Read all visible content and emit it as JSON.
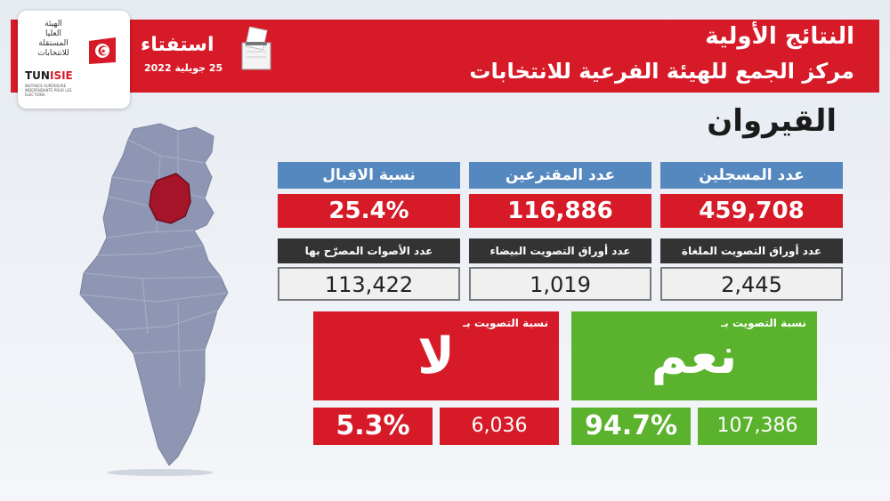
{
  "header": {
    "title_main": "النتائج الأولية",
    "title_sub": "مركز الجمع للهيئة الفرعية للانتخابات",
    "referendum_word": "استفتاء",
    "referendum_date": "25 جويلية 2022",
    "accent_color": "#d71a28"
  },
  "logo": {
    "arabic_lines": [
      "الهيئة",
      "العليا",
      "المستقلة",
      "للانتخابات"
    ],
    "latin_prefix": "TUN",
    "latin_suffix": "ISIE",
    "small_text": "INSTANCE SUPERIEURE INDEPENDANTE POUR LES ELECTIONS"
  },
  "region": {
    "name": "القيروان",
    "highlight_color": "#a6142a"
  },
  "stats": {
    "registered": {
      "label": "عدد المسجلين",
      "value": "459,708"
    },
    "voters": {
      "label": "عدد المقترعين",
      "value": "116,886"
    },
    "turnout": {
      "label": "نسبة الاقبال",
      "value": "25.4%"
    },
    "cancelled": {
      "label": "عدد أوراق التصويت الملغاة",
      "value": "2,445"
    },
    "blank": {
      "label": "عدد أوراق التصويت البيضاء",
      "value": "1,019"
    },
    "valid": {
      "label": "عدد الأصوات المصرّح بها",
      "value": "113,422"
    }
  },
  "no_vote": {
    "label": "نسبة التصويت بـ",
    "word": "لا",
    "percent": "5.3%",
    "count": "6,036",
    "color": "#d71a28"
  },
  "yes_vote": {
    "label": "نسبة التصويت بـ",
    "word": "نعم",
    "percent": "94.7%",
    "count": "107,386",
    "color": "#5ab22d"
  }
}
